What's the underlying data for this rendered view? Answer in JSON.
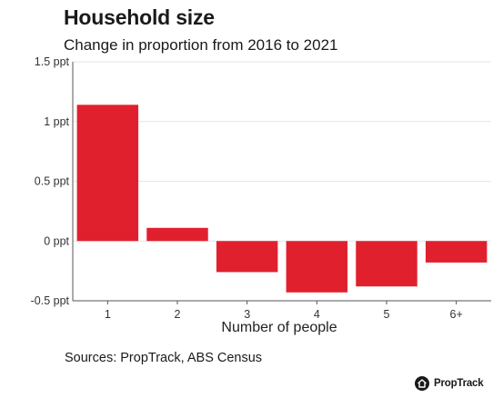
{
  "header": {
    "title": "Household size",
    "subtitle": "Change in proportion from 2016 to 2021"
  },
  "footer": {
    "source": "Sources: PropTrack, ABS Census",
    "brand": "PropTrack",
    "brand_icon": "house-icon"
  },
  "colors": {
    "bar": "#e1202e",
    "grid": "#e6e6e6",
    "axis": "#555555",
    "text": "#1a1a1a"
  },
  "chart_data": {
    "type": "bar",
    "title": "Household size",
    "subtitle": "Change in proportion from 2016 to 2021",
    "xlabel": "Number of people",
    "ylabel": "",
    "categories": [
      "1",
      "2",
      "3",
      "4",
      "5",
      "6+"
    ],
    "values": [
      1.14,
      0.11,
      -0.26,
      -0.43,
      -0.38,
      -0.18
    ],
    "ylim": [
      -0.5,
      1.5
    ],
    "yticks": [
      -0.5,
      0,
      0.5,
      1,
      1.5
    ],
    "ytick_labels": [
      "-0.5 ppt",
      "0 ppt",
      "0.5 ppt",
      "1 ppt",
      "1.5 ppt"
    ],
    "grid": true,
    "legend": "none"
  }
}
